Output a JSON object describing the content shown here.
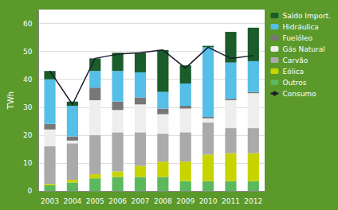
{
  "chart_data": {
    "type": "bar",
    "stacked": true,
    "ylabel": "TWh",
    "categories": [
      "2003",
      "2004",
      "2005",
      "2006",
      "2007",
      "2008",
      "2009",
      "2010",
      "2011",
      "2012"
    ],
    "series": [
      {
        "name": "Outros",
        "color": "#5cb85c",
        "values": [
          2.0,
          3.0,
          4.5,
          5.0,
          5.0,
          5.0,
          3.5,
          3.5,
          3.5,
          3.5
        ]
      },
      {
        "name": "Eólica",
        "color": "#c8d400",
        "values": [
          0.5,
          1.0,
          1.5,
          2.0,
          4.0,
          5.5,
          7.0,
          9.5,
          10.0,
          10.0
        ]
      },
      {
        "name": "Carvão",
        "color": "#aaaaaa",
        "values": [
          13.5,
          13.0,
          14.0,
          14.0,
          12.0,
          10.0,
          10.5,
          11.5,
          9.0,
          9.0
        ]
      },
      {
        "name": "Gás Natural",
        "color": "#eeeeee",
        "values": [
          6.0,
          1.0,
          12.5,
          8.0,
          10.0,
          7.0,
          8.5,
          1.5,
          10.0,
          12.5
        ]
      },
      {
        "name": "Fuelóleo",
        "color": "#777777",
        "values": [
          2.0,
          1.5,
          4.5,
          3.0,
          2.5,
          2.0,
          1.0,
          0.5,
          0.5,
          0.5
        ]
      },
      {
        "name": "Hidráulica",
        "color": "#55bfe8",
        "values": [
          16.0,
          11.0,
          6.0,
          11.0,
          9.0,
          6.0,
          8.0,
          25.0,
          13.0,
          11.0
        ]
      },
      {
        "name": "Saldo Import.",
        "color": "#1a5c2a",
        "values": [
          3.0,
          1.5,
          4.5,
          6.5,
          7.0,
          15.0,
          6.5,
          0.5,
          11.0,
          12.0
        ]
      },
      {
        "name": "Consumo",
        "type": "line",
        "color": "#1a1a2e",
        "values": [
          43.0,
          31.0,
          47.5,
          49.0,
          49.5,
          50.5,
          44.0,
          51.5,
          47.5,
          48.5
        ]
      }
    ],
    "ylim": [
      0,
      65
    ],
    "yticks": [
      0,
      10,
      20,
      30,
      40,
      50,
      60
    ],
    "grid": true,
    "legend": "right"
  }
}
